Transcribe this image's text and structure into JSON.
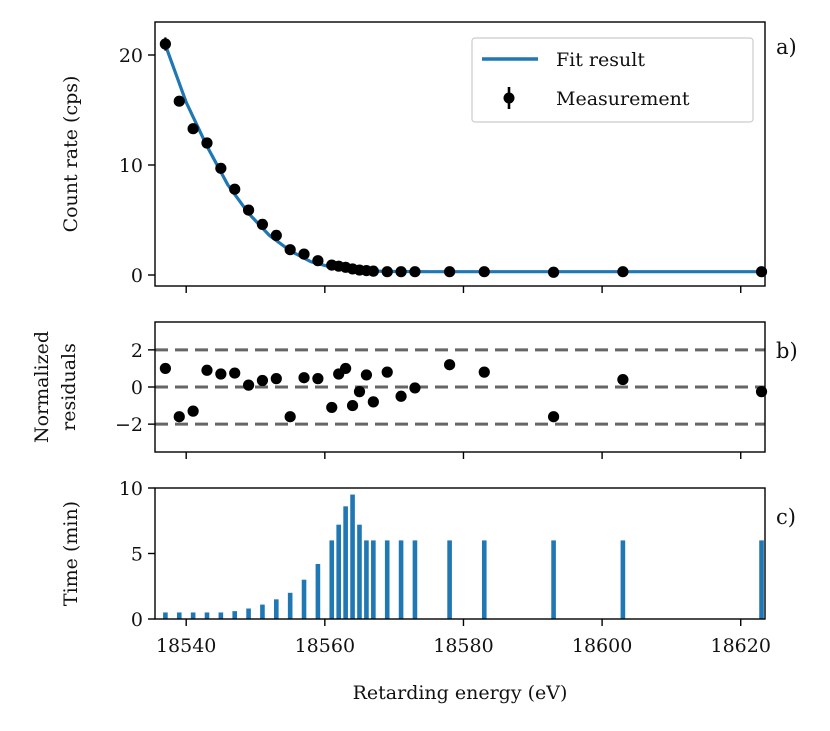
{
  "chart_data": [
    {
      "panel": "a)",
      "type": "scatter",
      "ylabel": "Count rate (cps)",
      "xlim": [
        18535.5,
        18623.5
      ],
      "ylim": [
        -1.0,
        23.0
      ],
      "yticks": [
        0,
        10,
        20
      ],
      "legend": {
        "placement": "top-right",
        "entries": [
          "Fit result",
          "Measurement"
        ]
      },
      "series": [
        {
          "name": "Measurement",
          "kind": "errorbar-points",
          "color": "#000000",
          "x": [
            18537,
            18539,
            18541,
            18543,
            18545,
            18547,
            18549,
            18551,
            18553,
            18555,
            18557,
            18559,
            18561,
            18562,
            18563,
            18564,
            18565,
            18566,
            18567,
            18569,
            18571,
            18573,
            18578,
            18583,
            18593,
            18603,
            18623
          ],
          "y": [
            21.0,
            15.8,
            13.3,
            12.0,
            9.7,
            7.8,
            5.9,
            4.6,
            3.6,
            2.3,
            1.9,
            1.3,
            0.9,
            0.8,
            0.7,
            0.55,
            0.45,
            0.4,
            0.35,
            0.3,
            0.3,
            0.3,
            0.3,
            0.3,
            0.25,
            0.3,
            0.3
          ],
          "yerr": [
            0.6,
            0.45,
            0.4,
            0.4,
            0.35,
            0.3,
            0.25,
            0.2,
            0.2,
            0.15,
            0.15,
            0.1,
            0.1,
            0.1,
            0.1,
            0.1,
            0.1,
            0.1,
            0.1,
            0.1,
            0.1,
            0.1,
            0.1,
            0.1,
            0.1,
            0.1,
            0.1
          ]
        },
        {
          "name": "Fit result",
          "kind": "line",
          "color": "#1f77b4",
          "x": [
            18537,
            18540,
            18543,
            18546,
            18549,
            18552,
            18555,
            18558,
            18561,
            18564,
            18567,
            18570,
            18575,
            18580,
            18590,
            18600,
            18610,
            18623
          ],
          "y": [
            20.9,
            15.7,
            11.7,
            8.2,
            5.6,
            3.6,
            2.2,
            1.2,
            0.7,
            0.45,
            0.35,
            0.32,
            0.3,
            0.3,
            0.3,
            0.3,
            0.3,
            0.3
          ]
        }
      ]
    },
    {
      "panel": "b)",
      "type": "scatter",
      "ylabel": "Normalized residuals",
      "ylabel_lines": [
        "Normalized",
        "residuals"
      ],
      "xlim": [
        18535.5,
        18623.5
      ],
      "ylim": [
        -3.5,
        3.5
      ],
      "yticks": [
        2,
        0,
        -2
      ],
      "ytick_labels": [
        "2",
        "0",
        "−2"
      ],
      "hlines": [
        2,
        0,
        -2
      ],
      "series": [
        {
          "kind": "points",
          "color": "#000000",
          "x": [
            18537,
            18539,
            18541,
            18543,
            18545,
            18547,
            18549,
            18551,
            18553,
            18555,
            18557,
            18559,
            18561,
            18562,
            18563,
            18564,
            18565,
            18566,
            18567,
            18569,
            18571,
            18573,
            18578,
            18583,
            18593,
            18603,
            18623
          ],
          "y": [
            1.0,
            -1.6,
            -1.3,
            0.9,
            0.7,
            0.75,
            0.1,
            0.35,
            0.45,
            -1.6,
            0.5,
            0.45,
            -1.1,
            0.7,
            1.0,
            -1.0,
            -0.25,
            0.65,
            -0.8,
            0.8,
            -0.5,
            -0.05,
            1.2,
            0.8,
            -1.6,
            0.4,
            -0.25
          ]
        }
      ]
    },
    {
      "panel": "c)",
      "type": "bar",
      "xlabel": "Retarding energy (eV)",
      "ylabel": "Time (min)",
      "xlim": [
        18535.5,
        18623.5
      ],
      "ylim": [
        0,
        10
      ],
      "yticks": [
        0,
        5,
        10
      ],
      "xticks": [
        18540,
        18560,
        18580,
        18600,
        18620
      ],
      "bar_color": "#1f77b4",
      "x": [
        18537,
        18539,
        18541,
        18543,
        18545,
        18547,
        18549,
        18551,
        18553,
        18555,
        18557,
        18559,
        18561,
        18562,
        18563,
        18564,
        18565,
        18566,
        18567,
        18569,
        18571,
        18573,
        18578,
        18583,
        18593,
        18603,
        18623
      ],
      "values": [
        0.5,
        0.5,
        0.5,
        0.5,
        0.5,
        0.6,
        0.8,
        1.1,
        1.5,
        2.0,
        3.0,
        4.2,
        6.0,
        7.2,
        8.6,
        9.5,
        7.2,
        6.0,
        6.0,
        6.0,
        6.0,
        6.0,
        6.0,
        6.0,
        6.0,
        6.0,
        6.0
      ]
    }
  ]
}
